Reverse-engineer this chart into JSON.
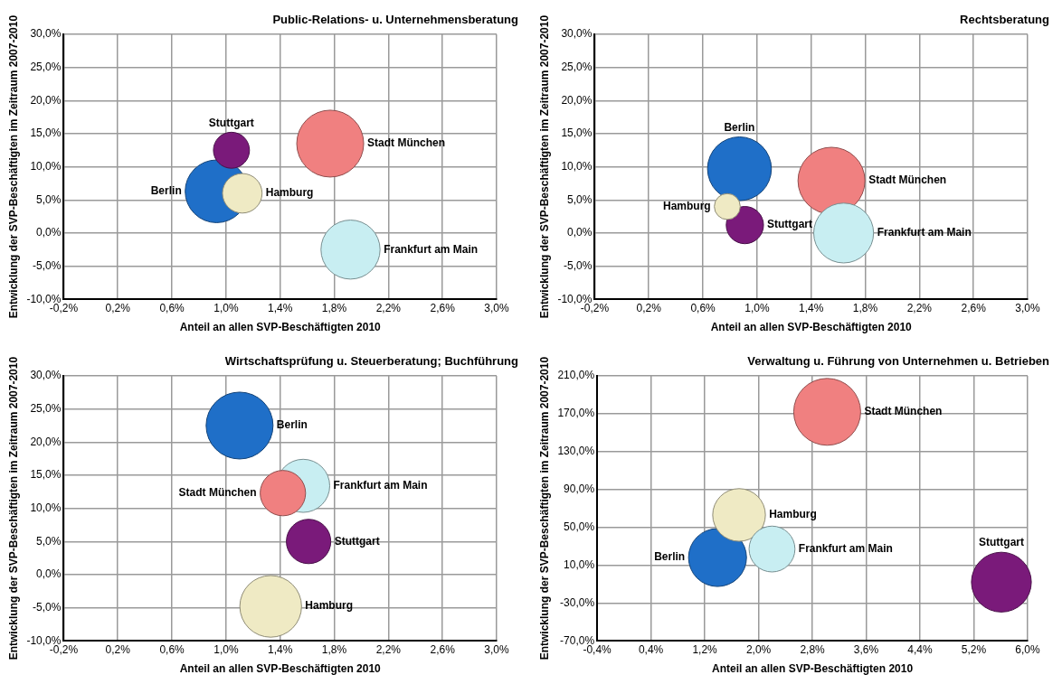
{
  "chart_data": [
    {
      "type": "bubble",
      "title": "Public-Relations- u. Unternehmensberatung",
      "xlabel": "Anteil an allen SVP-Beschäftigten 2010",
      "ylabel": "Entwicklung der SVP-Beschäftigten im Zeitraum 2007-2010",
      "xlim": [
        -0.2,
        3.0
      ],
      "xticks": [
        {
          "value": -0.2,
          "label": "-0,2%"
        },
        {
          "value": 0.2,
          "label": "0,2%"
        },
        {
          "value": 0.6,
          "label": "0,6%"
        },
        {
          "value": 1.0,
          "label": "1,0%"
        },
        {
          "value": 1.4,
          "label": "1,4%"
        },
        {
          "value": 1.8,
          "label": "1,8%"
        },
        {
          "value": 2.2,
          "label": "2,2%"
        },
        {
          "value": 2.6,
          "label": "2,6%"
        },
        {
          "value": 3.0,
          "label": "3,0%"
        }
      ],
      "ylim": [
        -10,
        30
      ],
      "yticks": [
        {
          "value": -10,
          "label": "-10,0%"
        },
        {
          "value": -5,
          "label": "-5,0%"
        },
        {
          "value": 0,
          "label": "0,0%"
        },
        {
          "value": 5,
          "label": "5,0%"
        },
        {
          "value": 10,
          "label": "10,0%"
        },
        {
          "value": 15,
          "label": "15,0%"
        },
        {
          "value": 20,
          "label": "20,0%"
        },
        {
          "value": 25,
          "label": "25,0%"
        },
        {
          "value": 30,
          "label": "30,0%"
        }
      ],
      "grid": true,
      "legend": false,
      "series": [
        {
          "name": "Berlin",
          "color": "#1f6fc8",
          "x": [
            0.93
          ],
          "values": [
            6.3
          ],
          "sizes": [
            0.88
          ]
        },
        {
          "name": "Hamburg",
          "color": "#efeac4",
          "x": [
            1.12
          ],
          "values": [
            6.0
          ],
          "sizes": [
            0.35
          ]
        },
        {
          "name": "Stadt München",
          "color": "#f08080",
          "x": [
            1.77
          ],
          "values": [
            13.5
          ],
          "sizes": [
            1
          ]
        },
        {
          "name": "Frankfurt am Main",
          "color": "#c8eef2",
          "x": [
            1.92
          ],
          "values": [
            -2.5
          ],
          "sizes": [
            0.78
          ]
        },
        {
          "name": "Stuttgart",
          "color": "#7a1a7a",
          "x": [
            1.04
          ],
          "values": [
            12.5
          ],
          "sizes": [
            0.29
          ]
        }
      ]
    },
    {
      "type": "bubble",
      "title": "Rechtsberatung",
      "xlabel": "Anteil an allen SVP-Beschäftigten 2010",
      "ylabel": "Entwicklung der SVP-Beschäftigten im Zeitraum 2007-2010",
      "xlim": [
        -0.2,
        3.0
      ],
      "xticks": [
        {
          "value": -0.2,
          "label": "-0,2%"
        },
        {
          "value": 0.2,
          "label": "0,2%"
        },
        {
          "value": 0.6,
          "label": "0,6%"
        },
        {
          "value": 1.0,
          "label": "1,0%"
        },
        {
          "value": 1.4,
          "label": "1,4%"
        },
        {
          "value": 1.8,
          "label": "1,8%"
        },
        {
          "value": 2.2,
          "label": "2,2%"
        },
        {
          "value": 2.6,
          "label": "2,6%"
        },
        {
          "value": 3.0,
          "label": "3,0%"
        }
      ],
      "ylim": [
        -10,
        30
      ],
      "yticks": [
        {
          "value": -10,
          "label": "-10,0%"
        },
        {
          "value": -5,
          "label": "-5,0%"
        },
        {
          "value": 0,
          "label": "0,0%"
        },
        {
          "value": 5,
          "label": "5,0%"
        },
        {
          "value": 10,
          "label": "10,0%"
        },
        {
          "value": 15,
          "label": "15,0%"
        },
        {
          "value": 20,
          "label": "20,0%"
        },
        {
          "value": 25,
          "label": "25,0%"
        },
        {
          "value": 30,
          "label": "30,0%"
        }
      ],
      "grid": true,
      "legend": false,
      "series": [
        {
          "name": "Berlin",
          "color": "#1f6fc8",
          "x": [
            0.87
          ],
          "values": [
            9.7
          ],
          "sizes": [
            0.91
          ]
        },
        {
          "name": "Hamburg",
          "color": "#efeac4",
          "x": [
            0.78
          ],
          "values": [
            4.0
          ],
          "sizes": [
            0.15
          ]
        },
        {
          "name": "Stadt München",
          "color": "#f08080",
          "x": [
            1.55
          ],
          "values": [
            7.9
          ],
          "sizes": [
            1
          ]
        },
        {
          "name": "Frankfurt am Main",
          "color": "#c8eef2",
          "x": [
            1.64
          ],
          "values": [
            0.0
          ],
          "sizes": [
            0.8
          ]
        },
        {
          "name": "Stuttgart",
          "color": "#7a1a7a",
          "x": [
            0.91
          ],
          "values": [
            1.2
          ],
          "sizes": [
            0.31
          ]
        }
      ]
    },
    {
      "type": "bubble",
      "title": "Wirtschaftsprüfung u. Steuerberatung; Buchführung",
      "xlabel": "Anteil an allen SVP-Beschäftigten 2010",
      "ylabel": "Entwicklung der SVP-Beschäftigten im Zeitraum 2007-2010",
      "xlim": [
        -0.2,
        3.0
      ],
      "xticks": [
        {
          "value": -0.2,
          "label": "-0,2%"
        },
        {
          "value": 0.2,
          "label": "0,2%"
        },
        {
          "value": 0.6,
          "label": "0,6%"
        },
        {
          "value": 1.0,
          "label": "1,0%"
        },
        {
          "value": 1.4,
          "label": "1,4%"
        },
        {
          "value": 1.8,
          "label": "1,8%"
        },
        {
          "value": 2.2,
          "label": "2,2%"
        },
        {
          "value": 2.6,
          "label": "2,6%"
        },
        {
          "value": 3.0,
          "label": "3,0%"
        }
      ],
      "ylim": [
        -10,
        30
      ],
      "yticks": [
        {
          "value": -10,
          "label": "-10,0%"
        },
        {
          "value": -5,
          "label": "-5,0%"
        },
        {
          "value": 0,
          "label": "0,0%"
        },
        {
          "value": 5,
          "label": "5,0%"
        },
        {
          "value": 10,
          "label": "10,0%"
        },
        {
          "value": 15,
          "label": "15,0%"
        },
        {
          "value": 20,
          "label": "20,0%"
        },
        {
          "value": 25,
          "label": "25,0%"
        },
        {
          "value": 30,
          "label": "30,0%"
        }
      ],
      "grid": true,
      "legend": false,
      "series": [
        {
          "name": "Berlin",
          "color": "#1f6fc8",
          "x": [
            1.1
          ],
          "values": [
            22.5
          ],
          "sizes": [
            1
          ]
        },
        {
          "name": "Hamburg",
          "color": "#efeac4",
          "x": [
            1.33
          ],
          "values": [
            -4.8
          ],
          "sizes": [
            0.85
          ]
        },
        {
          "name": "Stadt München",
          "color": "#f08080",
          "x": [
            1.42
          ],
          "values": [
            12.3
          ],
          "sizes": [
            0.46
          ]
        },
        {
          "name": "Frankfurt am Main",
          "color": "#c8eef2",
          "x": [
            1.57
          ],
          "values": [
            13.4
          ],
          "sizes": [
            0.63
          ]
        },
        {
          "name": "Stuttgart",
          "color": "#7a1a7a",
          "x": [
            1.61
          ],
          "values": [
            5.0
          ],
          "sizes": [
            0.44
          ]
        }
      ]
    },
    {
      "type": "bubble",
      "title": "Verwaltung u. Führung von Unternehmen u. Betrieben",
      "xlabel": "Anteil an allen SVP-Beschäftigten 2010",
      "ylabel": "Entwicklung der SVP-Beschäftigten im Zeitraum 2007-2010",
      "xlim": [
        -0.4,
        6.0
      ],
      "xticks": [
        {
          "value": -0.4,
          "label": "-0,4%"
        },
        {
          "value": 0.4,
          "label": "0,4%"
        },
        {
          "value": 1.2,
          "label": "1,2%"
        },
        {
          "value": 2.0,
          "label": "2,0%"
        },
        {
          "value": 2.8,
          "label": "2,8%"
        },
        {
          "value": 3.6,
          "label": "3,6%"
        },
        {
          "value": 4.4,
          "label": "4,4%"
        },
        {
          "value": 5.2,
          "label": "5,2%"
        },
        {
          "value": 6.0,
          "label": "6,0%"
        }
      ],
      "ylim": [
        -70,
        210
      ],
      "yticks": [
        {
          "value": -70,
          "label": "-70,0%"
        },
        {
          "value": -30,
          "label": "-30,0%"
        },
        {
          "value": 10,
          "label": "10,0%"
        },
        {
          "value": 50,
          "label": "50,0%"
        },
        {
          "value": 90,
          "label": "90,0%"
        },
        {
          "value": 130,
          "label": "130,0%"
        },
        {
          "value": 170,
          "label": "170,0%"
        },
        {
          "value": 210,
          "label": "210,0%"
        }
      ],
      "grid": true,
      "legend": false,
      "series": [
        {
          "name": "Berlin",
          "color": "#1f6fc8",
          "x": [
            1.39
          ],
          "values": [
            18
          ],
          "sizes": [
            0.75
          ]
        },
        {
          "name": "Hamburg",
          "color": "#efeac4",
          "x": [
            1.71
          ],
          "values": [
            63
          ],
          "sizes": [
            0.62
          ]
        },
        {
          "name": "Stadt München",
          "color": "#f08080",
          "x": [
            3.02
          ],
          "values": [
            172
          ],
          "sizes": [
            1
          ]
        },
        {
          "name": "Frankfurt am Main",
          "color": "#c8eef2",
          "x": [
            2.2
          ],
          "values": [
            27
          ],
          "sizes": [
            0.47
          ]
        },
        {
          "name": "Stuttgart",
          "color": "#7a1a7a",
          "x": [
            5.61
          ],
          "values": [
            -8
          ],
          "sizes": [
            0.8
          ]
        }
      ]
    }
  ]
}
